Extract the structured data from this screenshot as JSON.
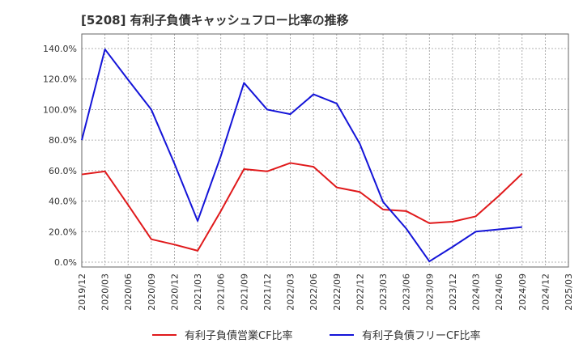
{
  "title": "[5208]  有利子負債キャッシュフロー比率の推移",
  "chart_data": {
    "type": "line",
    "title": "[5208]  有利子負債キャッシュフロー比率の推移",
    "xlabel": "",
    "ylabel": "",
    "categories": [
      "2019/12",
      "2020/03",
      "2020/06",
      "2020/09",
      "2020/12",
      "2021/03",
      "2021/06",
      "2021/09",
      "2021/12",
      "2022/03",
      "2022/06",
      "2022/09",
      "2022/12",
      "2023/03",
      "2023/06",
      "2023/09",
      "2023/12",
      "2024/03",
      "2024/06",
      "2024/09",
      "2024/12",
      "2025/03"
    ],
    "y_ticks": [
      "0.0%",
      "20.0%",
      "40.0%",
      "60.0%",
      "80.0%",
      "100.0%",
      "120.0%",
      "140.0%"
    ],
    "ylim": [
      0,
      140
    ],
    "grid": true,
    "legend_position": "bottom",
    "series": [
      {
        "name": "有利子負債営業CF比率",
        "color": "#e0191b",
        "values": [
          57.5,
          59.5,
          37.5,
          15,
          11.5,
          7.5,
          33.5,
          61,
          59.5,
          65,
          62.5,
          49,
          46,
          34.5,
          33.5,
          25.5,
          26.5,
          30,
          43.5,
          58,
          null,
          null
        ]
      },
      {
        "name": "有利子負債フリーCF比率",
        "color": "#1414d8",
        "values": [
          80,
          139.5,
          119.5,
          100,
          64.5,
          27,
          69.5,
          117.5,
          100,
          97,
          110,
          104,
          77.5,
          39.5,
          22,
          0.5,
          10,
          20,
          21.5,
          23,
          null,
          null
        ]
      }
    ]
  }
}
